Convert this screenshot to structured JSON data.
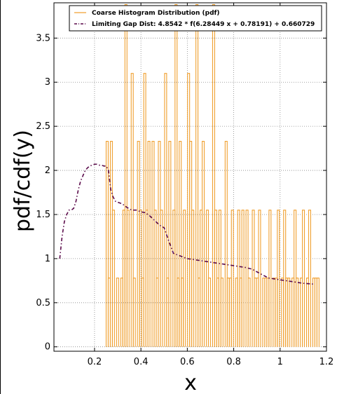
{
  "chart_data": {
    "type": "line",
    "xlabel": "x",
    "ylabel": "pdf/cdf(y)",
    "xlim": [
      0.025,
      1.2
    ],
    "ylim": [
      -0.05,
      3.9
    ],
    "grid": true,
    "legend_position": "top-right",
    "xticks": [
      0.2,
      0.4,
      0.6,
      0.8,
      1.0,
      1.2
    ],
    "xtick_labels": [
      "0.2",
      "0.4",
      "0.6",
      "0.8",
      "1",
      "1.2"
    ],
    "yticks": [
      0,
      0.5,
      1,
      1.5,
      2,
      2.5,
      3,
      3.5
    ],
    "ytick_labels": [
      "0",
      "0.5",
      "1",
      "1.5",
      "2",
      "2.5",
      "3",
      "3.5"
    ],
    "series": [
      {
        "name": "Coarse Histogram Distribution (pdf)",
        "style": "step",
        "color": "#f0a030",
        "bin_width": 0.0089,
        "x": [
          0.25,
          0.259,
          0.268,
          0.277,
          0.286,
          0.295,
          0.304,
          0.313,
          0.322,
          0.331,
          0.34,
          0.349,
          0.358,
          0.367,
          0.376,
          0.385,
          0.394,
          0.403,
          0.412,
          0.421,
          0.43,
          0.439,
          0.448,
          0.457,
          0.466,
          0.475,
          0.484,
          0.493,
          0.502,
          0.511,
          0.52,
          0.529,
          0.538,
          0.547,
          0.556,
          0.565,
          0.574,
          0.583,
          0.592,
          0.601,
          0.61,
          0.619,
          0.628,
          0.637,
          0.646,
          0.655,
          0.664,
          0.673,
          0.682,
          0.691,
          0.7,
          0.709,
          0.718,
          0.727,
          0.736,
          0.745,
          0.754,
          0.763,
          0.772,
          0.781,
          0.79,
          0.799,
          0.808,
          0.817,
          0.826,
          0.835,
          0.844,
          0.853,
          0.862,
          0.871,
          0.88,
          0.889,
          0.898,
          0.907,
          0.916,
          0.925,
          0.934,
          0.943,
          0.952,
          0.961,
          0.97,
          0.979,
          0.988,
          0.997,
          1.006,
          1.015,
          1.024,
          1.033,
          1.042,
          1.051,
          1.06,
          1.069,
          1.078,
          1.087,
          1.096,
          1.105,
          1.114,
          1.123,
          1.132,
          1.141,
          1.15,
          1.159
        ],
        "values": [
          2.33,
          0.78,
          2.33,
          1.55,
          0,
          0.78,
          0,
          0.78,
          1.55,
          3.88,
          1.55,
          0,
          3.1,
          0.78,
          0,
          2.33,
          1.55,
          0.78,
          3.1,
          1.55,
          2.33,
          0,
          2.33,
          1.55,
          0.78,
          2.33,
          1.55,
          0,
          3.1,
          0.78,
          2.33,
          0,
          1.55,
          3.88,
          0.78,
          2.33,
          0.78,
          1.55,
          0,
          3.1,
          2.33,
          1.55,
          0,
          3.88,
          0.78,
          1.55,
          2.33,
          0,
          1.55,
          0.78,
          0,
          3.88,
          1.55,
          0.78,
          1.55,
          0.78,
          0,
          2.33,
          0.78,
          0.78,
          1.55,
          0,
          0.78,
          1.55,
          0.78,
          1.55,
          0,
          1.55,
          0.78,
          0,
          1.55,
          0.78,
          0.78,
          1.55,
          0,
          0.78,
          0.78,
          0.78,
          1.55,
          0,
          0.78,
          0.78,
          1.55,
          0,
          0.78,
          1.55,
          0.78,
          0.78,
          0,
          0.78,
          1.55,
          0.78,
          0,
          0.78,
          1.55,
          0,
          0.78,
          1.55,
          0,
          0.78,
          0.78,
          0.78
        ]
      },
      {
        "name": "Limiting Gap Dist: 4.8542 * f(6.28449 x + 0.78191) + 0.660729",
        "style": "dash-dot",
        "color": "#5a0a4a",
        "x": [
          0.05,
          0.06,
          0.07,
          0.08,
          0.09,
          0.1,
          0.11,
          0.12,
          0.13,
          0.14,
          0.15,
          0.16,
          0.17,
          0.18,
          0.19,
          0.2,
          0.21,
          0.22,
          0.23,
          0.24,
          0.25,
          0.26,
          0.27,
          0.28,
          0.29,
          0.3,
          0.32,
          0.34,
          0.36,
          0.38,
          0.4,
          0.42,
          0.44,
          0.46,
          0.48,
          0.5,
          0.52,
          0.54,
          0.56,
          0.58,
          0.6,
          0.65,
          0.7,
          0.75,
          0.8,
          0.85,
          0.88,
          0.9,
          0.95,
          1.0,
          1.05,
          1.1,
          1.15
        ],
        "values": [
          1.0,
          1.25,
          1.42,
          1.5,
          1.55,
          1.55,
          1.57,
          1.65,
          1.78,
          1.88,
          1.94,
          2.0,
          2.03,
          2.05,
          2.06,
          2.07,
          2.07,
          2.06,
          2.06,
          2.05,
          2.05,
          2.0,
          1.78,
          1.7,
          1.65,
          1.64,
          1.62,
          1.58,
          1.55,
          1.55,
          1.53,
          1.52,
          1.48,
          1.43,
          1.38,
          1.35,
          1.2,
          1.06,
          1.04,
          1.02,
          1.0,
          0.98,
          0.96,
          0.94,
          0.92,
          0.9,
          0.88,
          0.85,
          0.78,
          0.76,
          0.74,
          0.72,
          0.71
        ]
      }
    ]
  }
}
